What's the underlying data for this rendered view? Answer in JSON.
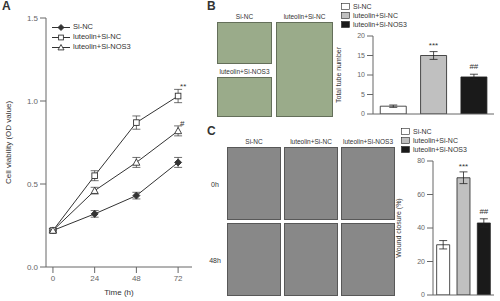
{
  "chart_data": [
    {
      "type": "line",
      "title": "A",
      "xlabel": "Time (h)",
      "ylabel": "Cell viability (OD value)",
      "x": [
        0,
        24,
        48,
        72
      ],
      "series": [
        {
          "name": "Si-NC",
          "color": "#333333",
          "marker": "diamond",
          "values": [
            0.22,
            0.32,
            0.43,
            0.63
          ],
          "errors": [
            0.01,
            0.02,
            0.02,
            0.03
          ]
        },
        {
          "name": "luteolin+Si-NC",
          "color": "#333333",
          "marker": "square-open",
          "values": [
            0.22,
            0.55,
            0.87,
            1.03
          ],
          "errors": [
            0.01,
            0.03,
            0.04,
            0.04
          ]
        },
        {
          "name": "luteolin+Si-NOS3",
          "color": "#333333",
          "marker": "triangle-open",
          "values": [
            0.22,
            0.46,
            0.63,
            0.82
          ],
          "errors": [
            0.01,
            0.02,
            0.03,
            0.03
          ]
        }
      ],
      "xlim": [
        -4,
        80
      ],
      "xticks": [
        0,
        24,
        48,
        72
      ],
      "ylim": [
        0.0,
        1.5
      ],
      "yticks": [
        {
          "value": 0,
          "label": "0.0"
        },
        0.5,
        {
          "value": 1,
          "label": "1.0"
        },
        1.5
      ],
      "legend": "upper left",
      "grid": false,
      "annotations": [
        {
          "text": "**",
          "x": 72,
          "y": 1.06
        },
        {
          "text": "#",
          "x": 72,
          "y": 0.84
        }
      ]
    },
    {
      "type": "image",
      "title": "B",
      "categories": [
        "Si-NC",
        "luteolin+Si-NOS3",
        "luteolin+Si-NC"
      ],
      "color": "#9aab8a"
    },
    {
      "type": "bar",
      "ylabel": "Total tube number",
      "categories": [
        "Si-NC",
        "luteolin+Si-NC",
        "luteolin+Si-NOS3"
      ],
      "values": [
        2.0,
        15.0,
        9.5
      ],
      "errors": [
        0.3,
        1.0,
        0.7
      ],
      "colors": [
        "#ffffff",
        "#c0c0c0",
        "#1a1a1a"
      ],
      "ylim": [
        0,
        20
      ],
      "yticks": [
        0,
        5,
        10,
        15,
        20
      ],
      "legend": "upper left",
      "tick_labels": "y",
      "grid": false,
      "annotations": [
        {
          "text": "***",
          "x": "luteolin+Si-NC",
          "y": 16.5
        },
        {
          "text": "##",
          "x": "luteolin+Si-NOS3",
          "y": 11.0
        }
      ]
    },
    {
      "type": "image",
      "title": "C",
      "categories": [
        "Si-NC",
        "luteolin+Si-NC",
        "luteolin+Si-NOS3"
      ],
      "annotations": [
        {
          "text": "0h"
        },
        {
          "text": "48h"
        }
      ],
      "color": "#888888"
    },
    {
      "type": "bar",
      "ylabel": "Wound closure (%)",
      "categories": [
        "Si-NC",
        "luteolin+Si-NC",
        "luteolin+Si-NOS3"
      ],
      "values": [
        30.0,
        70.0,
        43.0
      ],
      "errors": [
        2.5,
        3.5,
        2.5
      ],
      "colors": [
        "#ffffff",
        "#c0c0c0",
        "#1a1a1a"
      ],
      "ylim": [
        0,
        80
      ],
      "yticks": [
        0,
        20,
        40,
        60,
        80
      ],
      "legend": "upper left",
      "tick_labels": "y",
      "grid": false,
      "annotations": [
        {
          "text": "***",
          "x": "luteolin+Si-NC",
          "y": 74
        },
        {
          "text": "##",
          "x": "luteolin+Si-NOS3",
          "y": 47
        }
      ]
    }
  ]
}
